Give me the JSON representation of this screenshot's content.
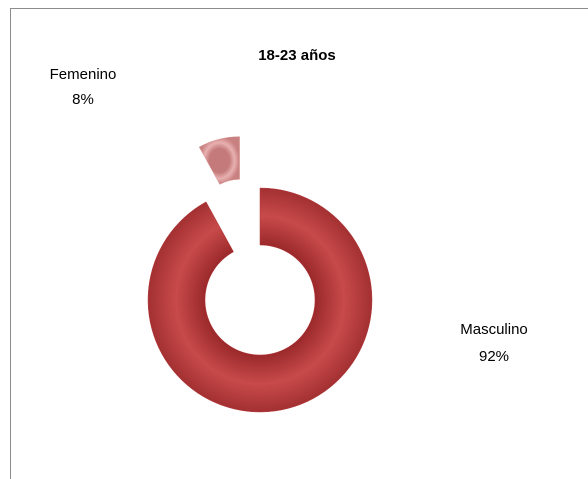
{
  "chart_data": {
    "type": "pie",
    "title": "18-23 años",
    "categories": [
      "Femenino",
      "Masculino"
    ],
    "values": [
      8,
      92
    ],
    "value_labels": [
      "8%",
      "92%"
    ],
    "colors": [
      "#d99594",
      "#b5383a"
    ],
    "donut": true
  }
}
